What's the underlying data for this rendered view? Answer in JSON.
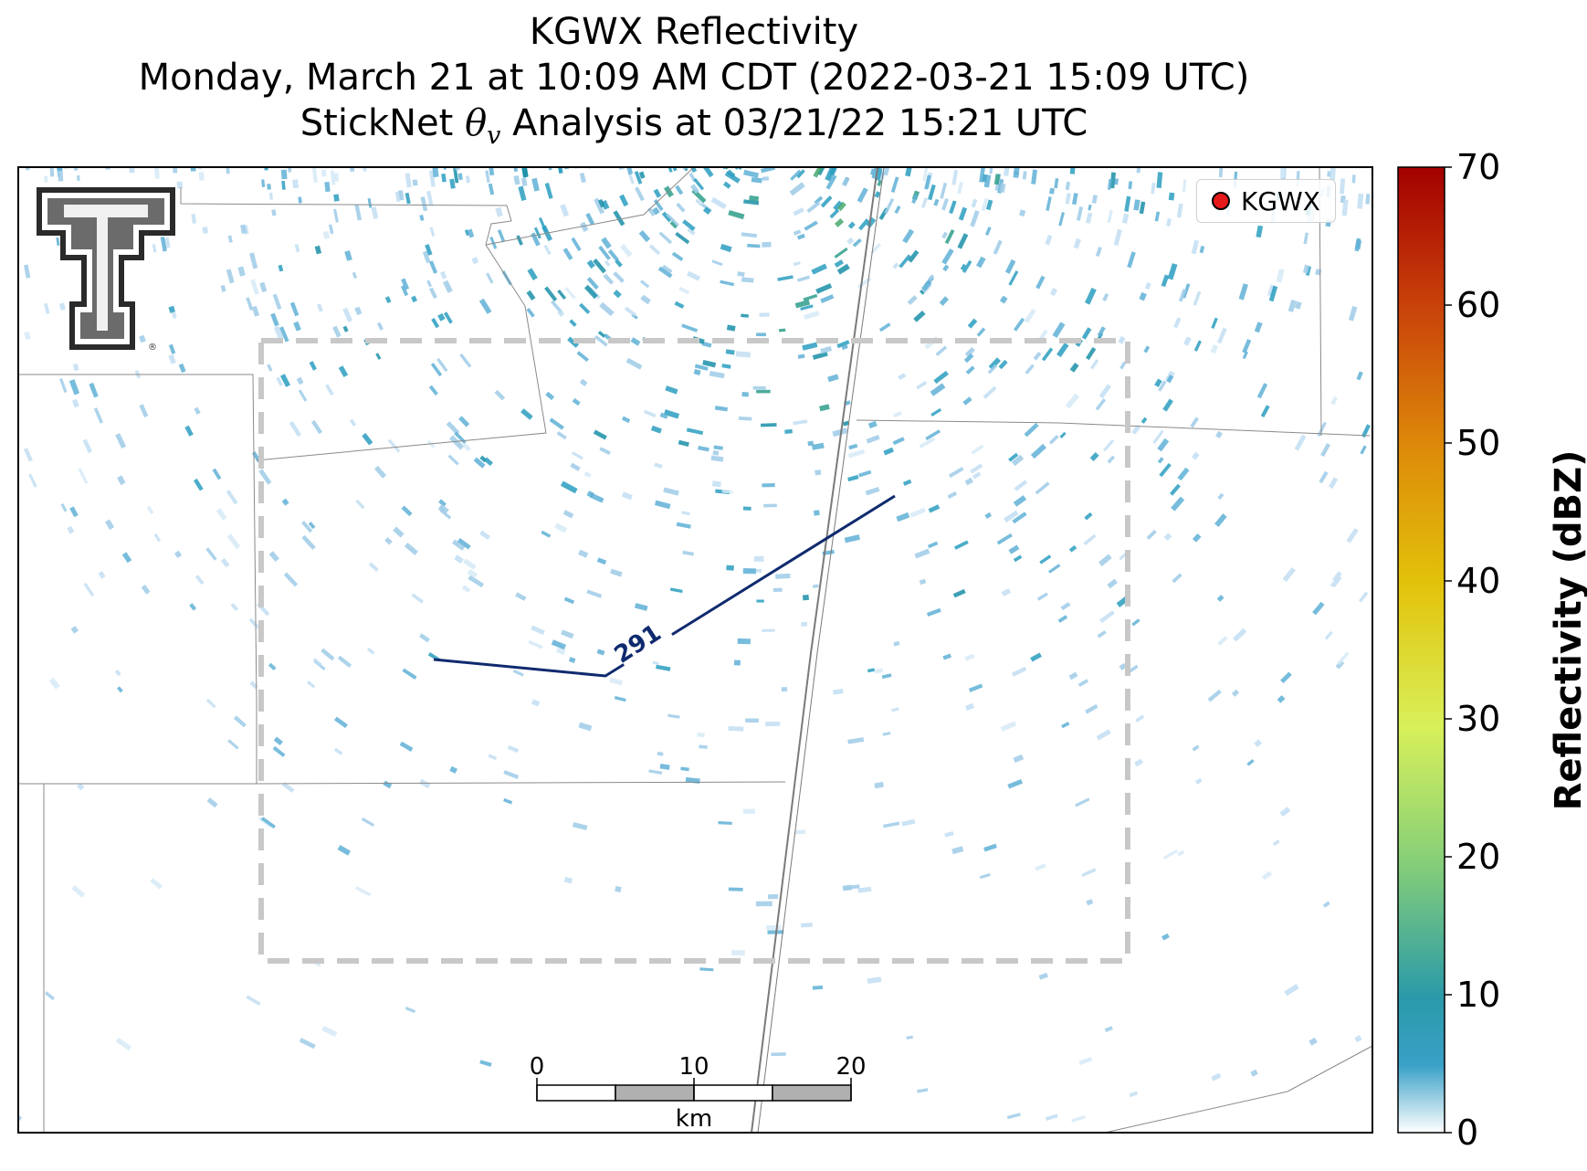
{
  "title": {
    "line1": "KGWX Reflectivity",
    "line2": "Monday, March 21 at 10:09 AM CDT (2022-03-21 15:09 UTC)",
    "line3_prefix": "StickNet ",
    "line3_symbol": "θ",
    "line3_subscript": "v",
    "line3_suffix": " Analysis at 03/21/22 15:21 UTC"
  },
  "logo": {
    "name": "texas-tech-double-t-logo",
    "trademark": "®"
  },
  "legend": {
    "label": "KGWX",
    "marker_color": "#e6191b"
  },
  "colorbar": {
    "label": "Reflectivity (dBZ)",
    "ticks": [
      "0",
      "10",
      "20",
      "30",
      "40",
      "50",
      "60",
      "70"
    ],
    "range": [
      0,
      70
    ]
  },
  "contour": {
    "label": "291",
    "variable": "θv",
    "color": "#0f2a6e"
  },
  "analysis_box": {
    "style": "dashed",
    "color": "#c8c8c8"
  },
  "scale_bar": {
    "ticks": [
      "0",
      "10",
      "20"
    ],
    "unit": "km"
  },
  "colors": {
    "reflectivity_low": "#cfe6f5",
    "reflectivity_mid": "#1a97b0",
    "reflectivity_high": "#2e9e6b"
  }
}
